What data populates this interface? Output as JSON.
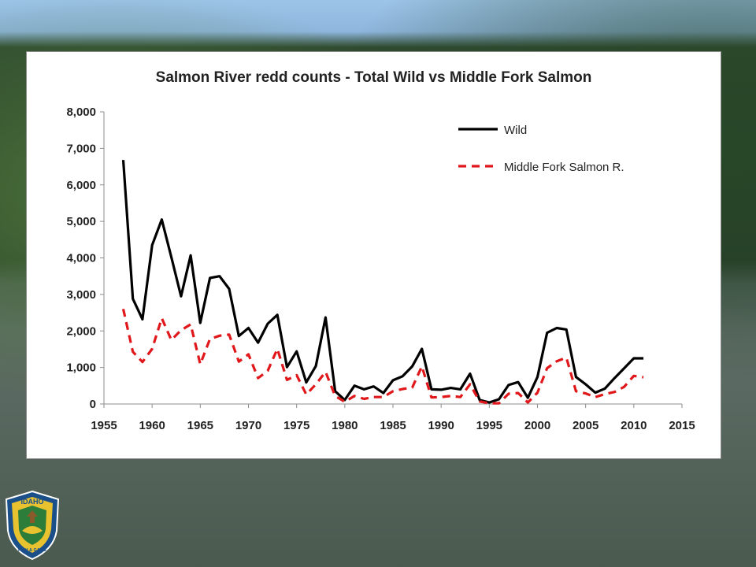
{
  "logo": {
    "top_text": "IDAHO",
    "bottom_text": "FISH & GAME",
    "colors": {
      "ring": "#1a4f8a",
      "fill": "#e9c32f",
      "inner": "#2d7d3a"
    }
  },
  "chart_data": {
    "type": "line",
    "title": "Salmon River redd counts - Total Wild vs Middle Fork Salmon",
    "xlabel": "",
    "ylabel": "",
    "xlim": [
      1955,
      2015
    ],
    "ylim": [
      0,
      8000
    ],
    "x_ticks": [
      "1955",
      "1960",
      "1965",
      "1970",
      "1975",
      "1980",
      "1985",
      "1990",
      "1995",
      "2000",
      "2005",
      "2010",
      "2015"
    ],
    "y_ticks": [
      "0",
      "1,000",
      "2,000",
      "3,000",
      "4,000",
      "5,000",
      "6,000",
      "7,000",
      "8,000"
    ],
    "grid": false,
    "legend_position": "top-right",
    "series": [
      {
        "name": "Wild",
        "color": "#000000",
        "style": "solid",
        "x": [
          1957,
          1958,
          1959,
          1960,
          1961,
          1962,
          1963,
          1964,
          1965,
          1966,
          1967,
          1968,
          1969,
          1970,
          1971,
          1972,
          1973,
          1974,
          1975,
          1976,
          1977,
          1978,
          1979,
          1980,
          1981,
          1982,
          1983,
          1984,
          1985,
          1986,
          1987,
          1988,
          1989,
          1990,
          1991,
          1992,
          1993,
          1994,
          1995,
          1996,
          1997,
          1998,
          1999,
          2000,
          2001,
          2002,
          2003,
          2004,
          2005,
          2006,
          2007,
          2008,
          2009,
          2010,
          2011
        ],
        "values": [
          6680,
          2880,
          2320,
          4350,
          5050,
          4020,
          2950,
          4070,
          2220,
          3450,
          3500,
          3150,
          1860,
          2080,
          1680,
          2200,
          2440,
          1010,
          1440,
          590,
          1040,
          2370,
          350,
          110,
          500,
          400,
          480,
          300,
          650,
          760,
          1030,
          1510,
          400,
          390,
          440,
          400,
          830,
          110,
          40,
          130,
          520,
          600,
          170,
          740,
          1950,
          2080,
          2040,
          740,
          540,
          310,
          420,
          710,
          980,
          1250,
          1250
        ]
      },
      {
        "name": "Middle Fork Salmon R.",
        "color": "#e0181b",
        "style": "dashed",
        "x": [
          1957,
          1958,
          1959,
          1960,
          1961,
          1962,
          1963,
          1964,
          1965,
          1966,
          1967,
          1968,
          1969,
          1970,
          1971,
          1972,
          1973,
          1974,
          1975,
          1976,
          1977,
          1978,
          1979,
          1980,
          1981,
          1982,
          1983,
          1984,
          1985,
          1986,
          1987,
          1988,
          1989,
          1990,
          1991,
          1992,
          1993,
          1994,
          1995,
          1996,
          1997,
          1998,
          1999,
          2000,
          2001,
          2002,
          2003,
          2004,
          2005,
          2006,
          2007,
          2008,
          2009,
          2010,
          2011
        ],
        "values": [
          2600,
          1430,
          1150,
          1510,
          2350,
          1750,
          2020,
          2180,
          1090,
          1780,
          1870,
          1900,
          1160,
          1360,
          710,
          910,
          1510,
          660,
          790,
          260,
          540,
          880,
          220,
          60,
          220,
          140,
          190,
          190,
          350,
          410,
          450,
          1030,
          180,
          190,
          220,
          190,
          540,
          70,
          20,
          20,
          280,
          300,
          40,
          310,
          980,
          1170,
          1270,
          350,
          290,
          190,
          270,
          330,
          470,
          770,
          730
        ]
      }
    ]
  }
}
